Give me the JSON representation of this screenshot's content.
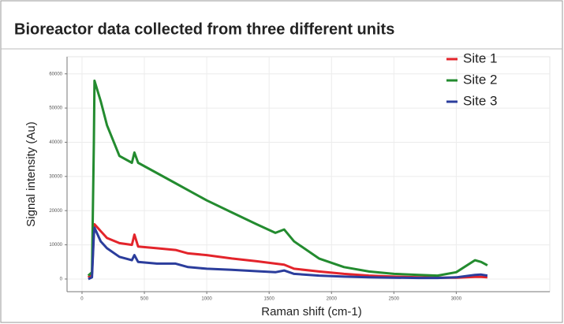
{
  "chart_data": {
    "type": "line",
    "title": "Bioreactor data collected from three different units",
    "xlabel": "Raman shift (cm-1)",
    "ylabel": "Signal intensity (Au)",
    "x": [
      50,
      80,
      95,
      100,
      150,
      200,
      300,
      400,
      420,
      450,
      600,
      750,
      850,
      1000,
      1200,
      1400,
      1550,
      1620,
      1700,
      1900,
      2100,
      2300,
      2500,
      2700,
      2850,
      3000,
      3150,
      3200,
      3250
    ],
    "series": [
      {
        "name": "Site 1",
        "color": "#e3242b",
        "values": [
          500,
          1500,
          14000,
          16000,
          14000,
          12000,
          10500,
          10000,
          13000,
          9500,
          9000,
          8500,
          7500,
          7000,
          6000,
          5200,
          4500,
          4200,
          3000,
          2200,
          1500,
          1000,
          700,
          500,
          400,
          400,
          600,
          600,
          500
        ]
      },
      {
        "name": "Site 2",
        "color": "#238b2f",
        "values": [
          1000,
          2000,
          40000,
          58000,
          52000,
          45000,
          36000,
          34000,
          37000,
          34000,
          31000,
          28000,
          26000,
          23000,
          19500,
          16000,
          13500,
          14500,
          11000,
          6000,
          3500,
          2200,
          1500,
          1200,
          1000,
          2000,
          5500,
          5000,
          4000
        ]
      },
      {
        "name": "Site 3",
        "color": "#2b3d9c",
        "values": [
          0,
          500,
          13000,
          15000,
          11000,
          9000,
          6500,
          5500,
          7000,
          5000,
          4500,
          4500,
          3500,
          3000,
          2700,
          2300,
          2000,
          2500,
          1500,
          1000,
          700,
          500,
          400,
          300,
          300,
          500,
          1200,
          1300,
          1000
        ]
      }
    ],
    "xlim": [
      -120,
      3750
    ],
    "xticks": [
      0,
      500,
      1000,
      1500,
      2000,
      2500,
      3000
    ],
    "ylim": [
      -3700,
      65000
    ],
    "yticks": [
      0,
      10000,
      20000,
      30000,
      40000,
      50000,
      60000
    ],
    "grid": true,
    "legend": "top-right"
  }
}
